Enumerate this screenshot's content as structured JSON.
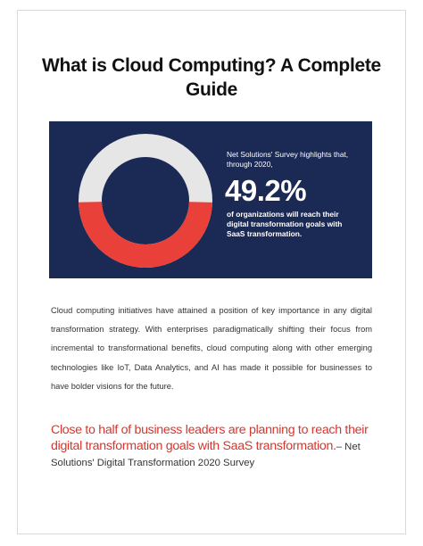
{
  "document": {
    "title": "What is Cloud Computing? A Complete Guide"
  },
  "banner": {
    "survey_intro": "Net Solutions' Survey highlights that, through 2020,",
    "stat_value": "49.2%",
    "stat_caption": "of organizations will reach their digital transformation goals with SaaS transformation.",
    "donut_fraction": 0.492,
    "colors": {
      "background": "#1b2a55",
      "filled": "#e9403a",
      "remaining": "#e6e6e6"
    }
  },
  "body": {
    "paragraph": "Cloud computing initiatives have attained a position of key importance in any digital transformation strategy. With enterprises paradigmatically shifting their focus from incremental to transformational benefits, cloud computing along with other emerging technologies like IoT, Data Analytics, and AI has made it possible for businesses to have bolder visions for the future."
  },
  "quote": {
    "text": "Close to half of business leaders are planning to reach their digital transformation goals with SaaS transformation.",
    "source": "– Net Solutions' Digital Transformation 2020 Survey",
    "color": "#d8352d"
  }
}
